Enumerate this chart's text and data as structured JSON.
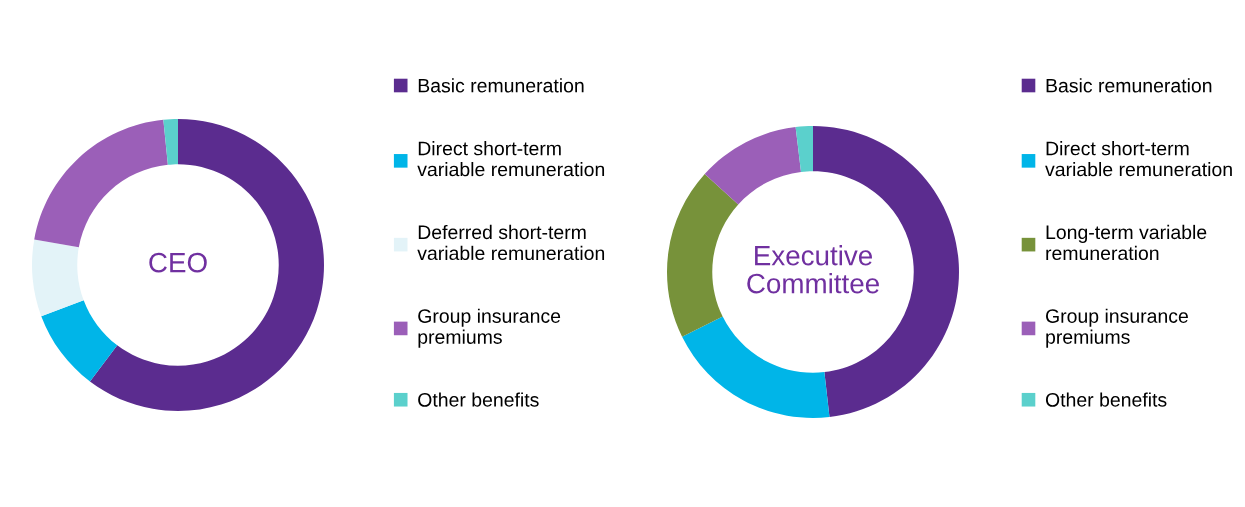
{
  "chart_data": [
    {
      "type": "donut",
      "title": "CEO",
      "categories": [
        "Basic remuneration",
        "Direct short-term\nvariable remuneration",
        "Deferred short-term\nvariable remuneration",
        "Group insurance\npremiums",
        "Other benefits"
      ],
      "values": [
        60.3,
        9,
        8.5,
        20.6,
        1.6
      ],
      "colors": [
        "#5b2c8f",
        "#00b5e8",
        "#e3f3f8",
        "#9b5fb8",
        "#5bd0cc"
      ],
      "legend": "right"
    },
    {
      "type": "donut",
      "title": "Executive\nCommittee",
      "categories": [
        "Basic remuneration",
        "Direct short-term\nvariable remuneration",
        "Long-term variable\nremuneration",
        "Group insurance\npremiums",
        "Other benefits"
      ],
      "values": [
        48.2,
        19.5,
        19,
        11.4,
        1.9
      ],
      "colors": [
        "#5b2c8f",
        "#00b5e8",
        "#77923a",
        "#9b5fb8",
        "#5bd0cc"
      ],
      "legend": "right"
    }
  ]
}
